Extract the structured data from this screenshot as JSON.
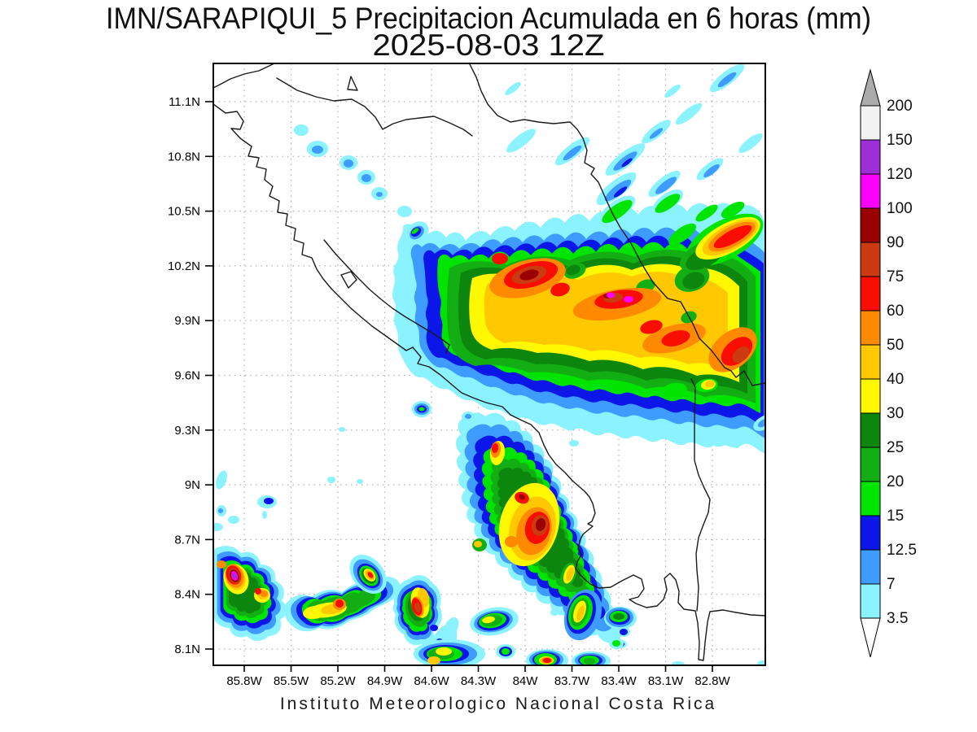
{
  "title": {
    "line1": "IMN/SARAPIQUI_5 Precipitacion Acumulada en 6 horas (mm)",
    "line2": "2025-08-03 12Z"
  },
  "caption": "Instituto Meteorologico Nacional Costa Rica",
  "axes": {
    "lat_ticks": [
      "11.1N",
      "10.8N",
      "10.5N",
      "10.2N",
      "9.9N",
      "9.6N",
      "9.3N",
      "9N",
      "8.7N",
      "8.4N",
      "8.1N"
    ],
    "lon_ticks": [
      "85.8W",
      "85.5W",
      "85.2W",
      "84.9W",
      "84.6W",
      "84.3W",
      "84W",
      "83.7W",
      "83.4W",
      "83.1W",
      "82.8W"
    ]
  },
  "colorbar": {
    "units": "mm",
    "boundary_labels_top_to_bottom": [
      "200",
      "150",
      "120",
      "100",
      "90",
      "75",
      "60",
      "50",
      "40",
      "30",
      "25",
      "20",
      "15",
      "12.5",
      "7",
      "3.5"
    ],
    "over_arrow_color": "#ABABAB",
    "under_arrow_color": "#FFFFFF"
  },
  "palette": [
    {
      "min_mm": 3.5,
      "color": "#8AF3FF"
    },
    {
      "min_mm": 7,
      "color": "#3E9BFF"
    },
    {
      "min_mm": 12.5,
      "color": "#0D16E8"
    },
    {
      "min_mm": 15,
      "color": "#00E400"
    },
    {
      "min_mm": 20,
      "color": "#13AE13"
    },
    {
      "min_mm": 25,
      "color": "#0D860D"
    },
    {
      "min_mm": 30,
      "color": "#FFF800"
    },
    {
      "min_mm": 40,
      "color": "#FFC800"
    },
    {
      "min_mm": 50,
      "color": "#FF8A00"
    },
    {
      "min_mm": 60,
      "color": "#F80D00"
    },
    {
      "min_mm": 75,
      "color": "#CB3A10"
    },
    {
      "min_mm": 90,
      "color": "#9A0000"
    },
    {
      "min_mm": 100,
      "color": "#FB00FB"
    },
    {
      "min_mm": 120,
      "color": "#9C30D6"
    },
    {
      "min_mm": 150,
      "color": "#F2F2F2"
    }
  ],
  "chart_data": {
    "type": "heatmap",
    "title": "IMN/SARAPIQUI_5 Precipitacion Acumulada en 6 horas (mm)",
    "valid_time": "2025-08-03 12Z",
    "units": "mm",
    "region": {
      "lon_min": -86.0,
      "lon_max": -82.45,
      "lat_min": 8.0,
      "lat_max": 11.3
    },
    "lon_tick_values": [
      -85.8,
      -85.5,
      -85.2,
      -84.9,
      -84.6,
      -84.3,
      -84.0,
      -83.7,
      -83.4,
      -83.1,
      -82.8
    ],
    "lat_tick_values": [
      11.1,
      10.8,
      10.5,
      10.2,
      9.9,
      9.6,
      9.3,
      9.0,
      8.7,
      8.4,
      8.1
    ],
    "levels_mm": [
      3.5,
      7,
      12.5,
      15,
      20,
      25,
      30,
      40,
      50,
      60,
      75,
      90,
      100,
      120,
      150,
      200
    ],
    "grid": "dotted",
    "legend_position": "right",
    "features": [
      {
        "name": "NE diagonal band core (Caribbean slope)",
        "lon": -83.96,
        "lat": 10.15,
        "max_mm": 100
      },
      {
        "name": "NE band magenta cells",
        "lon": -83.4,
        "lat": 10.03,
        "max_mm": 120
      },
      {
        "name": "NE corner streak cell",
        "lon": -82.67,
        "lat": 10.36,
        "max_mm": 75
      },
      {
        "name": "East edge cell",
        "lon": -82.64,
        "lat": 9.73,
        "max_mm": 90
      },
      {
        "name": "Central-south cluster core",
        "lon": -83.91,
        "lat": 8.78,
        "max_mm": 100
      },
      {
        "name": "Central-south cluster north cell",
        "lon": -84.19,
        "lat": 9.2,
        "max_mm": 75
      },
      {
        "name": "SW arc west cell (purple core)",
        "lon": -85.86,
        "lat": 8.5,
        "max_mm": 120
      },
      {
        "name": "SW arc mid cells",
        "lon": -85.19,
        "lat": 8.35,
        "max_mm": 60
      },
      {
        "name": "SW arc east cell",
        "lon": -84.69,
        "lat": 8.33,
        "max_mm": 75
      },
      {
        "name": "South coastal tall cell",
        "lon": -83.65,
        "lat": 8.3,
        "max_mm": 40
      },
      {
        "name": "NW weak-echo chain",
        "lon": -85.2,
        "lat": 10.7,
        "max_mm": 12.5
      }
    ]
  }
}
